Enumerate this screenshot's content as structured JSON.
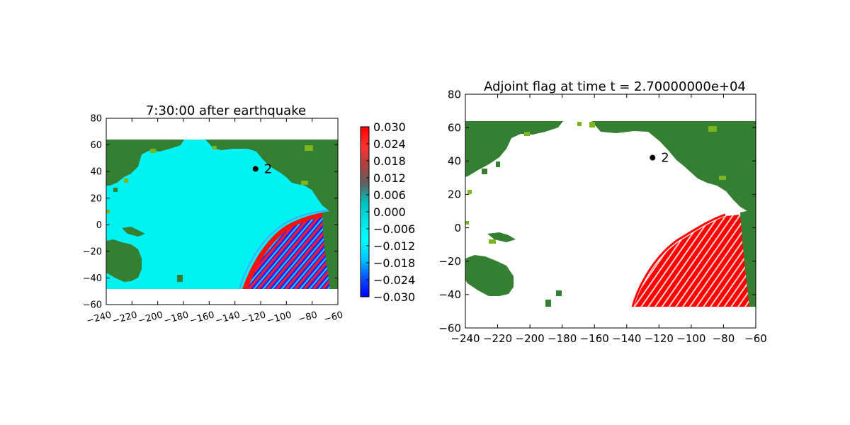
{
  "colors": {
    "land": "#357f32",
    "coast": "#7ab51e",
    "water": "#00f2f2",
    "wave_red": "#ff0000",
    "wave_blue": "#1a10ff",
    "flag": "#ff0000",
    "marker": "#000000"
  },
  "chart_data": [
    {
      "type": "heatmap",
      "title": "7:30:00 after earthquake",
      "xlim": [
        -240,
        -60
      ],
      "ylim": [
        -60,
        80
      ],
      "xticks": [
        "−240",
        "−220",
        "−200",
        "−180",
        "−160",
        "−140",
        "−120",
        "−100",
        "−80",
        "−60"
      ],
      "xtick_values": [
        -240,
        -220,
        -200,
        -180,
        -160,
        -140,
        -120,
        -100,
        -80,
        -60
      ],
      "yticks": [
        "80",
        "60",
        "40",
        "20",
        "0",
        "−20",
        "−40",
        "−60"
      ],
      "ytick_values": [
        80,
        60,
        40,
        20,
        0,
        -20,
        -40,
        -60
      ],
      "xtick_rotation_deg": 15,
      "domain_extent": {
        "lon": [
          -240,
          -66
        ],
        "lat": [
          -47,
          65
        ]
      },
      "marker": {
        "label": "2",
        "lon": -124,
        "lat": 42
      },
      "colorbar": {
        "range": [
          -0.03,
          0.03
        ],
        "ticks": [
          "0.030",
          "0.024",
          "0.018",
          "0.012",
          "0.006",
          "0.000",
          "−0.006",
          "−0.012",
          "−0.018",
          "−0.024",
          "−0.030"
        ],
        "tick_values": [
          0.03,
          0.024,
          0.018,
          0.012,
          0.006,
          0.0,
          -0.006,
          -0.012,
          -0.018,
          -0.024,
          -0.03
        ],
        "colormap": [
          "#0000ff",
          "#0a50ff",
          "#00c8ff",
          "#00ffff",
          "#00e6e6",
          "#00c0c0",
          "#606060",
          "#b04040",
          "#ff3030",
          "#ff0000"
        ]
      },
      "grid": false
    },
    {
      "type": "heatmap",
      "title": "Adjoint flag at time t = 2.70000000e+04",
      "xlim": [
        -240,
        -60
      ],
      "ylim": [
        -60,
        80
      ],
      "xticks": [
        "−240",
        "−220",
        "−200",
        "−180",
        "−160",
        "−140",
        "−120",
        "−100",
        "−80",
        "−60"
      ],
      "xtick_values": [
        -240,
        -220,
        -200,
        -180,
        -160,
        -140,
        -120,
        -100,
        -80,
        -60
      ],
      "yticks": [
        "80",
        "60",
        "40",
        "20",
        "0",
        "−20",
        "−40",
        "−60"
      ],
      "ytick_values": [
        80,
        60,
        40,
        20,
        0,
        -20,
        -40,
        -60
      ],
      "domain_extent": {
        "lon": [
          -240,
          -66
        ],
        "lat": [
          -47,
          65
        ]
      },
      "marker": {
        "label": "2",
        "lon": -124,
        "lat": 42
      },
      "grid": false
    }
  ]
}
